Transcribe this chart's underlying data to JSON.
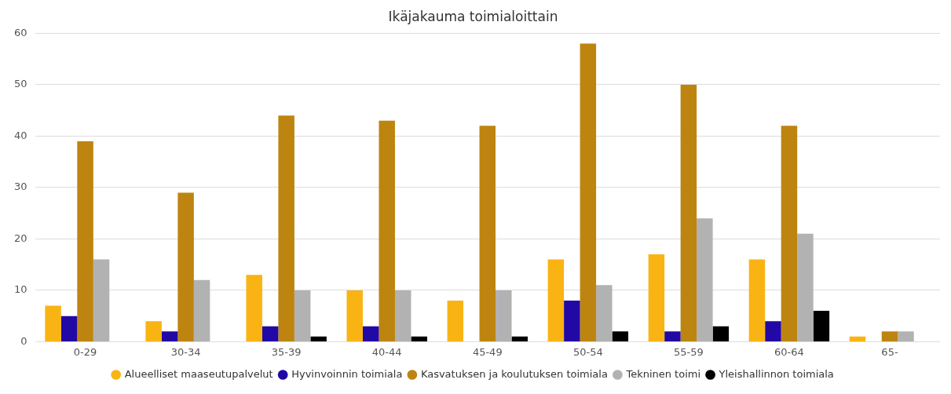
{
  "chart_data": {
    "type": "bar",
    "title": "Ikäjakauma toimialoittain",
    "categories": [
      "0-29",
      "30-34",
      "35-39",
      "40-44",
      "45-49",
      "50-54",
      "55-59",
      "60-64",
      "65-"
    ],
    "series": [
      {
        "name": "Alueelliset maaseutupalvelut",
        "color": "#f9b414",
        "values": [
          7,
          4,
          13,
          10,
          8,
          16,
          17,
          16,
          1
        ]
      },
      {
        "name": "Hyvinvoinnin toimiala",
        "color": "#2208a4",
        "values": [
          5,
          2,
          3,
          3,
          null,
          8,
          2,
          4,
          null
        ]
      },
      {
        "name": "Kasvatuksen ja koulutuksen toimiala",
        "color": "#bd8510",
        "values": [
          39,
          29,
          44,
          43,
          42,
          58,
          50,
          42,
          2
        ]
      },
      {
        "name": "Tekninen toimi",
        "color": "#b2b2b2",
        "values": [
          16,
          12,
          10,
          10,
          10,
          11,
          24,
          21,
          2
        ]
      },
      {
        "name": "Yleishallinnon toimiala",
        "color": "#000000",
        "values": [
          null,
          null,
          1,
          1,
          1,
          2,
          3,
          6,
          null
        ]
      }
    ],
    "ylim": [
      0,
      60
    ],
    "yticks": [
      0,
      10,
      20,
      30,
      40,
      50,
      60
    ],
    "grid": "y",
    "legend": "bottom",
    "marker": "circle"
  }
}
